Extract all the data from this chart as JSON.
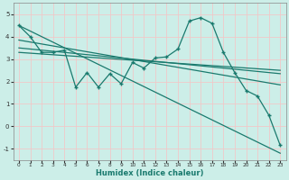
{
  "xlabel": "Humidex (Indice chaleur)",
  "bg_color": "#cceee8",
  "grid_color": "#f0c8c8",
  "line_color": "#1a7a6e",
  "xlim": [
    -0.5,
    23.5
  ],
  "ylim": [
    -1.5,
    5.5
  ],
  "yticks": [
    -1,
    0,
    1,
    2,
    3,
    4,
    5
  ],
  "xticks": [
    0,
    1,
    2,
    3,
    4,
    5,
    6,
    7,
    8,
    9,
    10,
    11,
    12,
    13,
    14,
    15,
    16,
    17,
    18,
    19,
    20,
    21,
    22,
    23
  ],
  "series1_x": [
    0,
    1,
    2,
    3,
    4,
    5,
    6,
    7,
    8,
    9,
    10,
    11,
    12,
    13,
    14,
    15,
    16,
    17,
    18,
    19,
    20,
    21,
    22,
    23
  ],
  "series1_y": [
    4.5,
    4.0,
    3.3,
    3.3,
    3.4,
    1.75,
    2.4,
    1.75,
    2.35,
    1.9,
    2.85,
    2.6,
    3.05,
    3.1,
    3.45,
    4.7,
    4.85,
    4.6,
    3.3,
    2.4,
    1.6,
    1.35,
    0.5,
    -0.85
  ],
  "line1_x": [
    0,
    23
  ],
  "line1_y": [
    4.5,
    -1.2
  ],
  "line2_x": [
    0,
    23
  ],
  "line2_y": [
    3.85,
    1.85
  ],
  "line3_x": [
    0,
    23
  ],
  "line3_y": [
    3.5,
    2.35
  ],
  "line4_x": [
    0,
    23
  ],
  "line4_y": [
    3.3,
    2.5
  ]
}
